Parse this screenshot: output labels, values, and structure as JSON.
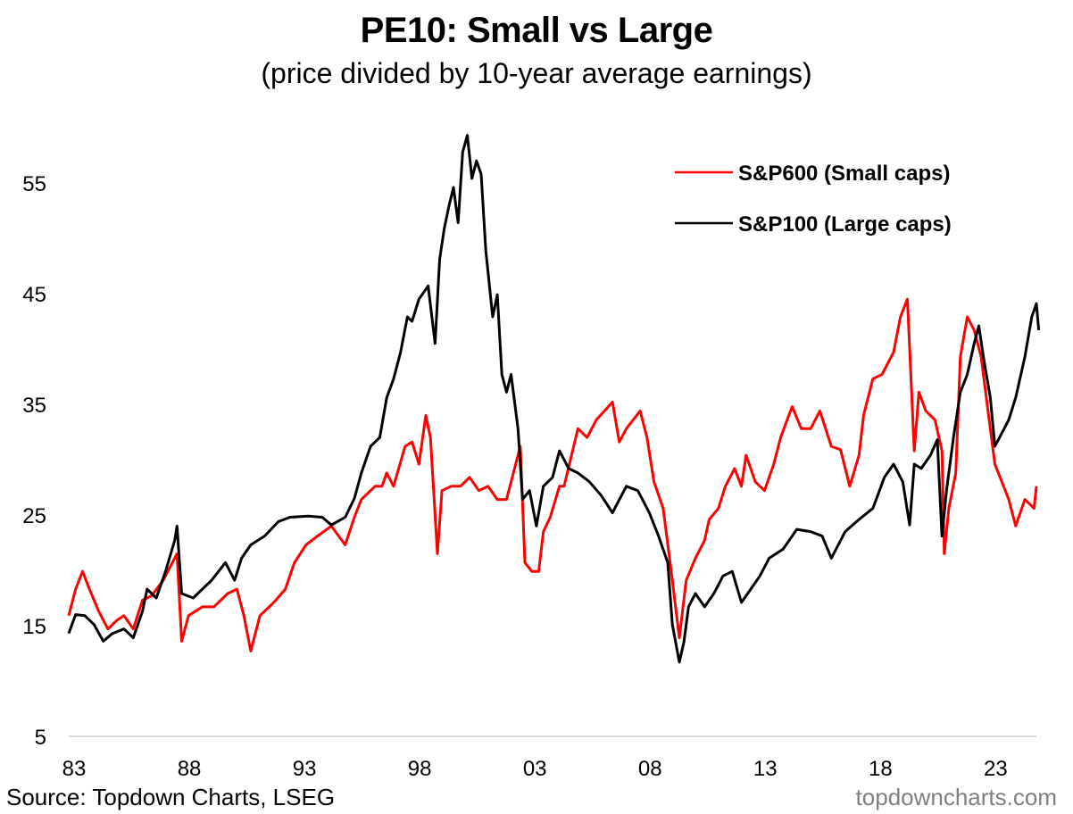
{
  "header": {
    "title": "PE10: Small vs Large",
    "subtitle": "(price divided by 10-year average earnings)"
  },
  "footer": {
    "source": "Source: Topdown Charts, LSEG",
    "watermark": "topdowncharts.com"
  },
  "chart_data": {
    "type": "line",
    "title": "PE10: Small vs Large",
    "subtitle": "(price divided by 10-year average earnings)",
    "xlabel": "",
    "ylabel": "",
    "xlim": [
      1983,
      2025
    ],
    "ylim": [
      5,
      60
    ],
    "yticks": [
      5,
      15,
      25,
      35,
      45,
      55
    ],
    "ytick_labels": [
      "5",
      "15",
      "25",
      "35",
      "45",
      "55"
    ],
    "xticks": [
      1983,
      1988,
      1993,
      1998,
      2003,
      2008,
      2013,
      2018,
      2023
    ],
    "xtick_labels": [
      "83",
      "88",
      "93",
      "98",
      "03",
      "08",
      "13",
      "18",
      "23"
    ],
    "grid": "baseline only",
    "legend_position": "top-right",
    "colors": {
      "small": "#ff0000",
      "large": "#000000",
      "baseline": "#d9d9d9"
    },
    "series": [
      {
        "name": "S&P600 (Small caps)",
        "color": "#ff0000",
        "points": [
          [
            1983.0,
            15.9
          ],
          [
            1983.3,
            18.3
          ],
          [
            1983.6,
            19.9
          ],
          [
            1983.9,
            18.3
          ],
          [
            1984.3,
            16.3
          ],
          [
            1984.7,
            14.7
          ],
          [
            1985.1,
            15.5
          ],
          [
            1985.4,
            15.9
          ],
          [
            1985.8,
            14.7
          ],
          [
            1986.2,
            17.3
          ],
          [
            1986.6,
            17.7
          ],
          [
            1987.1,
            19.1
          ],
          [
            1987.5,
            20.7
          ],
          [
            1987.7,
            21.5
          ],
          [
            1987.9,
            13.6
          ],
          [
            1988.2,
            15.9
          ],
          [
            1988.8,
            16.7
          ],
          [
            1989.3,
            16.7
          ],
          [
            1989.9,
            17.9
          ],
          [
            1990.3,
            18.3
          ],
          [
            1990.6,
            15.9
          ],
          [
            1990.9,
            12.7
          ],
          [
            1991.3,
            15.9
          ],
          [
            1991.9,
            17.1
          ],
          [
            1992.4,
            18.3
          ],
          [
            1992.8,
            20.7
          ],
          [
            1993.3,
            22.3
          ],
          [
            1993.8,
            23.1
          ],
          [
            1994.4,
            24.0
          ],
          [
            1995.0,
            22.3
          ],
          [
            1995.4,
            24.8
          ],
          [
            1995.7,
            26.4
          ],
          [
            1996.3,
            27.6
          ],
          [
            1996.6,
            27.6
          ],
          [
            1996.8,
            28.8
          ],
          [
            1997.1,
            27.6
          ],
          [
            1997.6,
            31.2
          ],
          [
            1997.9,
            31.6
          ],
          [
            1998.2,
            29.6
          ],
          [
            1998.5,
            34.0
          ],
          [
            1998.7,
            32.0
          ],
          [
            1999.0,
            21.5
          ],
          [
            1999.2,
            27.2
          ],
          [
            1999.6,
            27.6
          ],
          [
            2000.0,
            27.6
          ],
          [
            2000.4,
            28.4
          ],
          [
            2000.8,
            27.2
          ],
          [
            2001.2,
            27.6
          ],
          [
            2001.6,
            26.4
          ],
          [
            2002.0,
            26.4
          ],
          [
            2002.6,
            31.2
          ],
          [
            2002.8,
            20.7
          ],
          [
            2003.1,
            19.9
          ],
          [
            2003.4,
            19.9
          ],
          [
            2003.6,
            23.5
          ],
          [
            2003.9,
            24.8
          ],
          [
            2004.3,
            27.6
          ],
          [
            2004.5,
            27.6
          ],
          [
            2005.1,
            32.8
          ],
          [
            2005.5,
            32.0
          ],
          [
            2005.9,
            33.6
          ],
          [
            2006.6,
            35.2
          ],
          [
            2006.9,
            31.6
          ],
          [
            2007.2,
            32.8
          ],
          [
            2007.8,
            34.4
          ],
          [
            2008.1,
            32.0
          ],
          [
            2008.4,
            28.0
          ],
          [
            2008.8,
            25.6
          ],
          [
            2009.2,
            19.1
          ],
          [
            2009.5,
            13.9
          ],
          [
            2009.8,
            19.1
          ],
          [
            2010.2,
            21.1
          ],
          [
            2010.6,
            22.7
          ],
          [
            2010.8,
            24.6
          ],
          [
            2011.2,
            25.6
          ],
          [
            2011.5,
            27.6
          ],
          [
            2011.9,
            29.2
          ],
          [
            2012.2,
            27.6
          ],
          [
            2012.4,
            30.4
          ],
          [
            2012.8,
            28.0
          ],
          [
            2013.2,
            27.2
          ],
          [
            2013.6,
            29.6
          ],
          [
            2013.9,
            32.0
          ],
          [
            2014.4,
            34.8
          ],
          [
            2014.8,
            32.8
          ],
          [
            2015.2,
            32.8
          ],
          [
            2015.6,
            34.4
          ],
          [
            2016.1,
            31.2
          ],
          [
            2016.5,
            30.9
          ],
          [
            2016.9,
            27.6
          ],
          [
            2017.3,
            30.4
          ],
          [
            2017.5,
            34.0
          ],
          [
            2017.9,
            37.3
          ],
          [
            2018.3,
            37.7
          ],
          [
            2018.8,
            39.7
          ],
          [
            2019.1,
            42.9
          ],
          [
            2019.4,
            44.5
          ],
          [
            2019.7,
            30.8
          ],
          [
            2019.9,
            36.1
          ],
          [
            2020.2,
            34.4
          ],
          [
            2020.6,
            33.6
          ],
          [
            2020.9,
            30.8
          ],
          [
            2021.0,
            21.5
          ],
          [
            2021.2,
            25.6
          ],
          [
            2021.5,
            28.8
          ],
          [
            2021.7,
            39.3
          ],
          [
            2022.0,
            42.9
          ],
          [
            2022.3,
            41.7
          ],
          [
            2022.6,
            39.3
          ],
          [
            2022.9,
            34.4
          ],
          [
            2023.2,
            29.6
          ],
          [
            2023.5,
            28.0
          ],
          [
            2023.8,
            26.4
          ],
          [
            2024.1,
            24.0
          ],
          [
            2024.5,
            26.4
          ],
          [
            2024.9,
            25.6
          ],
          [
            2025.0,
            27.6
          ]
        ]
      },
      {
        "name": "S&P100 (Large caps)",
        "color": "#000000",
        "points": [
          [
            1983.0,
            14.3
          ],
          [
            1983.3,
            16.0
          ],
          [
            1983.7,
            15.9
          ],
          [
            1984.1,
            15.1
          ],
          [
            1984.5,
            13.6
          ],
          [
            1984.9,
            14.3
          ],
          [
            1985.4,
            14.7
          ],
          [
            1985.8,
            13.9
          ],
          [
            1986.2,
            16.3
          ],
          [
            1986.4,
            18.3
          ],
          [
            1986.8,
            17.5
          ],
          [
            1987.2,
            19.9
          ],
          [
            1987.6,
            22.7
          ],
          [
            1987.7,
            24.0
          ],
          [
            1987.9,
            17.9
          ],
          [
            1988.4,
            17.5
          ],
          [
            1989.2,
            19.1
          ],
          [
            1989.8,
            20.7
          ],
          [
            1990.2,
            19.1
          ],
          [
            1990.5,
            21.1
          ],
          [
            1990.9,
            22.3
          ],
          [
            1991.5,
            23.1
          ],
          [
            1992.1,
            24.4
          ],
          [
            1992.6,
            24.8
          ],
          [
            1993.4,
            24.9
          ],
          [
            1994.0,
            24.8
          ],
          [
            1994.4,
            24.1
          ],
          [
            1995.0,
            24.8
          ],
          [
            1995.4,
            26.5
          ],
          [
            1995.7,
            28.8
          ],
          [
            1996.1,
            31.2
          ],
          [
            1996.5,
            32.0
          ],
          [
            1996.8,
            35.6
          ],
          [
            1997.1,
            37.3
          ],
          [
            1997.4,
            39.7
          ],
          [
            1997.7,
            42.9
          ],
          [
            1997.9,
            42.5
          ],
          [
            1998.2,
            44.5
          ],
          [
            1998.6,
            45.7
          ],
          [
            1998.9,
            40.5
          ],
          [
            1999.1,
            48.1
          ],
          [
            1999.3,
            50.9
          ],
          [
            1999.5,
            52.9
          ],
          [
            1999.7,
            54.6
          ],
          [
            1999.9,
            51.4
          ],
          [
            2000.1,
            57.8
          ],
          [
            2000.3,
            59.3
          ],
          [
            2000.5,
            55.4
          ],
          [
            2000.7,
            57.0
          ],
          [
            2000.9,
            55.8
          ],
          [
            2001.1,
            48.9
          ],
          [
            2001.4,
            42.9
          ],
          [
            2001.6,
            44.9
          ],
          [
            2001.8,
            37.7
          ],
          [
            2002.0,
            36.1
          ],
          [
            2002.2,
            37.7
          ],
          [
            2002.5,
            32.8
          ],
          [
            2002.7,
            26.4
          ],
          [
            2003.0,
            27.2
          ],
          [
            2003.3,
            24.0
          ],
          [
            2003.6,
            27.6
          ],
          [
            2004.0,
            28.4
          ],
          [
            2004.3,
            30.8
          ],
          [
            2004.7,
            29.2
          ],
          [
            2005.1,
            28.8
          ],
          [
            2005.6,
            28.0
          ],
          [
            2006.1,
            26.8
          ],
          [
            2006.6,
            25.2
          ],
          [
            2007.2,
            27.6
          ],
          [
            2007.7,
            27.2
          ],
          [
            2008.2,
            25.2
          ],
          [
            2008.6,
            23.1
          ],
          [
            2009.0,
            20.7
          ],
          [
            2009.2,
            15.1
          ],
          [
            2009.5,
            11.7
          ],
          [
            2009.7,
            13.5
          ],
          [
            2009.9,
            16.7
          ],
          [
            2010.2,
            17.9
          ],
          [
            2010.6,
            16.7
          ],
          [
            2011.0,
            17.9
          ],
          [
            2011.4,
            19.5
          ],
          [
            2011.8,
            19.9
          ],
          [
            2012.2,
            17.1
          ],
          [
            2012.6,
            18.3
          ],
          [
            2013.0,
            19.5
          ],
          [
            2013.4,
            21.1
          ],
          [
            2014.0,
            21.9
          ],
          [
            2014.6,
            23.7
          ],
          [
            2015.2,
            23.5
          ],
          [
            2015.7,
            23.1
          ],
          [
            2016.1,
            21.1
          ],
          [
            2016.7,
            23.5
          ],
          [
            2017.3,
            24.6
          ],
          [
            2017.9,
            25.6
          ],
          [
            2018.4,
            28.4
          ],
          [
            2018.8,
            29.6
          ],
          [
            2019.2,
            28.0
          ],
          [
            2019.5,
            24.1
          ],
          [
            2019.7,
            29.6
          ],
          [
            2020.0,
            29.2
          ],
          [
            2020.4,
            30.4
          ],
          [
            2020.7,
            31.8
          ],
          [
            2020.9,
            23.1
          ],
          [
            2021.1,
            27.2
          ],
          [
            2021.4,
            32.0
          ],
          [
            2021.7,
            36.1
          ],
          [
            2022.0,
            37.7
          ],
          [
            2022.3,
            40.5
          ],
          [
            2022.5,
            42.1
          ],
          [
            2022.7,
            39.3
          ],
          [
            2023.0,
            35.6
          ],
          [
            2023.2,
            31.2
          ],
          [
            2023.4,
            32.0
          ],
          [
            2023.8,
            33.6
          ],
          [
            2024.1,
            35.6
          ],
          [
            2024.5,
            39.3
          ],
          [
            2024.8,
            42.9
          ],
          [
            2025.0,
            44.1
          ],
          [
            2025.1,
            41.7
          ]
        ]
      }
    ]
  }
}
